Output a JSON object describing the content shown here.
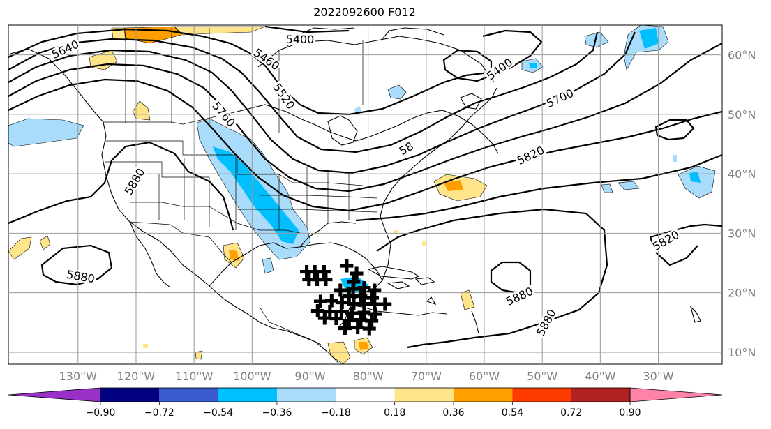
{
  "title": "2022092600 F012",
  "colors": {
    "level_colors": [
      "#9b30c8",
      "#000080",
      "#3a5bcf",
      "#00bfff",
      "#a8dcfa",
      "#ffffff",
      "#ffe48a",
      "#ffa000",
      "#ff3c00",
      "#b22222",
      "#ff82a9"
    ],
    "contour": "#000000",
    "grid": "#9a9a9a"
  },
  "map": {
    "projection": "PlateCarree",
    "lon_range": [
      -142,
      -19
    ],
    "lat_range": [
      8,
      65
    ],
    "lon_ticks": [
      "130°W",
      "120°W",
      "110°W",
      "100°W",
      "90°W",
      "80°W",
      "70°W",
      "60°W",
      "50°W",
      "40°W",
      "30°W"
    ],
    "lat_ticks": [
      "60°N",
      "50°N",
      "40°N",
      "30°N",
      "20°N",
      "10°N"
    ]
  },
  "contour_labels": [
    "5400",
    "5460",
    "5520",
    "5640",
    "5760",
    "5880",
    "5880",
    "5400",
    "5700",
    "5820",
    "5820",
    "5880",
    "5880",
    "58"
  ],
  "colorbar": {
    "tick_labels": [
      "−0.90",
      "−0.72",
      "−0.54",
      "−0.36",
      "−0.18",
      "0.18",
      "0.36",
      "0.54",
      "0.72",
      "0.90"
    ]
  },
  "markers": {
    "symbol": "✚",
    "points": [
      [
        -90.6,
        23.5
      ],
      [
        -89.2,
        23.5
      ],
      [
        -87.6,
        23.5
      ],
      [
        -83.7,
        24.5
      ],
      [
        -82.0,
        23.2
      ],
      [
        -90.2,
        22.2
      ],
      [
        -88.8,
        22.2
      ],
      [
        -87.3,
        22.2
      ],
      [
        -82.5,
        21.8
      ],
      [
        -84.8,
        20.4
      ],
      [
        -82.6,
        20.6
      ],
      [
        -80.7,
        20.8
      ],
      [
        -78.9,
        20.4
      ],
      [
        -83.3,
        19.4
      ],
      [
        -81.3,
        19.4
      ],
      [
        -79.3,
        19.1
      ],
      [
        -88.2,
        18.5
      ],
      [
        -86.3,
        18.6
      ],
      [
        -84.5,
        18.3
      ],
      [
        -82.5,
        18.1
      ],
      [
        -80.7,
        18.1
      ],
      [
        -78.9,
        18.0
      ],
      [
        -77.1,
        18.0
      ],
      [
        -88.7,
        16.9
      ],
      [
        -86.6,
        16.8
      ],
      [
        -84.6,
        16.8
      ],
      [
        -82.8,
        16.5
      ],
      [
        -80.7,
        16.6
      ],
      [
        -78.8,
        16.4
      ],
      [
        -87.5,
        15.7
      ],
      [
        -85.5,
        15.6
      ],
      [
        -83.3,
        15.3
      ],
      [
        -81.3,
        15.4
      ],
      [
        -79.4,
        15.2
      ],
      [
        -84.0,
        14.0
      ],
      [
        -81.8,
        14.1
      ],
      [
        -79.8,
        13.9
      ]
    ]
  }
}
